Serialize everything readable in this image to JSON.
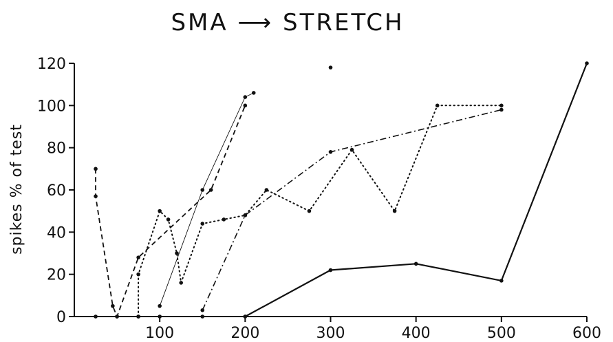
{
  "chart_data": {
    "type": "line",
    "title": "SMA ⟶ STRETCH",
    "ylabel": "spikes % of test",
    "xlabel": "",
    "xlim": [
      0,
      600
    ],
    "ylim": [
      0,
      120
    ],
    "x_ticks": [
      100,
      200,
      300,
      400,
      500,
      600
    ],
    "y_ticks": [
      0,
      20,
      40,
      60,
      80,
      100,
      120
    ],
    "grid": false,
    "legend": "none",
    "series": [
      {
        "style": "solid",
        "x": [
          200,
          300,
          400,
          500,
          600
        ],
        "y": [
          0,
          22,
          25,
          17,
          120
        ]
      },
      {
        "style": "dash-dot",
        "x": [
          150,
          200,
          300,
          500
        ],
        "y": [
          3,
          48,
          78,
          98
        ]
      },
      {
        "style": "dotted",
        "x": [
          75,
          75,
          100,
          110,
          120,
          125,
          150,
          175,
          200,
          225,
          275,
          325,
          375,
          425,
          500
        ],
        "y": [
          0,
          20,
          50,
          46,
          30,
          16,
          44,
          46,
          48,
          60,
          50,
          79,
          50,
          100,
          100
        ]
      },
      {
        "style": "dashed",
        "x": [
          25,
          25,
          45,
          50,
          75,
          160,
          200
        ],
        "y": [
          70,
          57,
          5,
          0,
          28,
          60,
          100
        ]
      },
      {
        "style": "thin-solid",
        "x": [
          100,
          150,
          200,
          210
        ],
        "y": [
          5,
          60,
          104,
          106
        ]
      },
      {
        "style": "baseline",
        "x": [
          25,
          50,
          75,
          100,
          150,
          200
        ],
        "y": [
          0,
          0,
          0,
          0,
          0,
          0
        ]
      },
      {
        "style": "point",
        "x": [
          300
        ],
        "y": [
          118
        ]
      }
    ]
  }
}
